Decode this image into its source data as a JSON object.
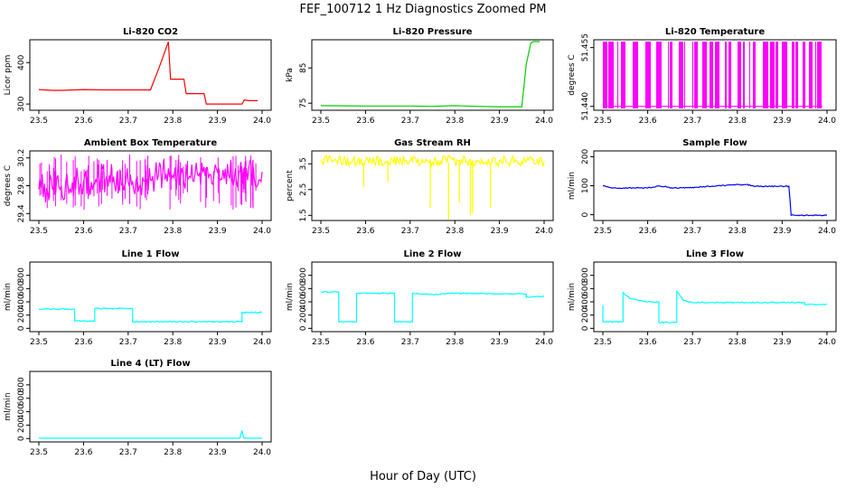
{
  "title": "FEF_100712  1 Hz Diagnostics Zoomed PM",
  "xlabel": "Hour of Day (UTC)",
  "chart_data": [
    {
      "type": "line",
      "title": "Li-820 CO2",
      "ylabel": "Licor ppm",
      "color": "#ff0000",
      "xlim": [
        23.5,
        24.0
      ],
      "ylim": [
        285,
        455
      ],
      "xticks": [
        "23.5",
        "23.6",
        "23.7",
        "23.8",
        "23.9",
        "24.0"
      ],
      "yticks": [
        "300",
        "400"
      ],
      "series": [
        {
          "x": [
            23.5,
            23.53,
            23.55,
            23.6,
            23.65,
            23.7,
            23.75,
            23.77,
            23.79,
            23.795,
            23.8,
            23.825,
            23.83,
            23.87,
            23.875,
            23.955,
            23.96,
            23.97,
            23.99
          ],
          "y": [
            335,
            333,
            333,
            335,
            334,
            334,
            334,
            390,
            450,
            360,
            360,
            360,
            325,
            325,
            300,
            300,
            310,
            308,
            308
          ]
        }
      ]
    },
    {
      "type": "line",
      "title": "Li-820 Pressure",
      "ylabel": "kPa",
      "color": "#00cc00",
      "xlim": [
        23.5,
        24.0
      ],
      "ylim": [
        73,
        93
      ],
      "xticks": [
        "23.5",
        "23.6",
        "23.7",
        "23.8",
        "23.9",
        "24.0"
      ],
      "yticks": [
        "75",
        "85"
      ],
      "series": [
        {
          "x": [
            23.5,
            23.6,
            23.7,
            23.75,
            23.8,
            23.85,
            23.9,
            23.95,
            23.955,
            23.96,
            23.965,
            23.97,
            23.975,
            23.99
          ],
          "y": [
            74.3,
            74.2,
            74.2,
            74.1,
            74.3,
            74.1,
            74.0,
            74.0,
            80,
            86,
            89,
            92,
            92.5,
            92.5
          ]
        }
      ]
    },
    {
      "type": "line",
      "title": "Li-820 Temperature",
      "ylabel": "degrees C",
      "color": "#ff00ff",
      "xlim": [
        23.5,
        24.0
      ],
      "ylim": [
        51.439,
        51.457
      ],
      "xticks": [
        "23.5",
        "23.6",
        "23.7",
        "23.8",
        "23.9",
        "24.0"
      ],
      "yticks": [
        "51.440",
        "51.455"
      ],
      "series": [
        {
          "x": [
            23.5,
            23.99
          ],
          "y": [
            51.44,
            51.44
          ]
        }
      ]
    },
    {
      "type": "line",
      "title": "Ambient Box Temperature",
      "ylabel": "degrees C",
      "color": "#ff00ff",
      "xlim": [
        23.5,
        24.0
      ],
      "ylim": [
        29.3,
        30.3
      ],
      "xticks": [
        "23.5",
        "23.6",
        "23.7",
        "23.8",
        "23.9",
        "24.0"
      ],
      "yticks": [
        "29.4",
        "29.8",
        "30.2"
      ],
      "series": [
        {
          "x": [
            23.5,
            23.55,
            23.6,
            23.65,
            23.7,
            23.75,
            23.79,
            23.8,
            23.85,
            23.9,
            23.95,
            24.0
          ],
          "y": [
            29.75,
            29.8,
            29.85,
            29.9,
            29.85,
            29.88,
            30.05,
            29.95,
            29.98,
            30.0,
            30.0,
            30.0
          ]
        }
      ]
    },
    {
      "type": "line",
      "title": "Gas Stream RH",
      "ylabel": "percent",
      "color": "#ffff00",
      "xlim": [
        23.5,
        24.0
      ],
      "ylim": [
        1.3,
        4.0
      ],
      "xticks": [
        "23.5",
        "23.6",
        "23.7",
        "23.8",
        "23.9",
        "24.0"
      ],
      "yticks": [
        "1.5",
        "2.5",
        "3.5"
      ],
      "series": [
        {
          "x": [
            23.5,
            23.55,
            23.6,
            23.65,
            23.7,
            23.75,
            23.79,
            23.8,
            23.85,
            23.9,
            23.95,
            24.0
          ],
          "y": [
            3.65,
            3.6,
            3.6,
            3.6,
            3.6,
            3.55,
            3.75,
            3.6,
            3.6,
            3.6,
            3.6,
            3.6
          ]
        }
      ]
    },
    {
      "type": "line",
      "title": "Sample Flow",
      "ylabel": "ml/min",
      "color": "#0000ff",
      "xlim": [
        23.5,
        24.0
      ],
      "ylim": [
        -20,
        220
      ],
      "xticks": [
        "23.5",
        "23.6",
        "23.7",
        "23.8",
        "23.9",
        "24.0"
      ],
      "yticks": [
        "0",
        "100",
        "200"
      ],
      "series": [
        {
          "x": [
            23.5,
            23.52,
            23.6,
            23.62,
            23.64,
            23.65,
            23.7,
            23.8,
            23.82,
            23.84,
            23.9,
            23.915,
            23.92,
            24.0
          ],
          "y": [
            100,
            92,
            92,
            98,
            98,
            92,
            94,
            104,
            104,
            98,
            98,
            98,
            -2,
            -2
          ]
        }
      ]
    },
    {
      "type": "line",
      "title": "Line 1 Flow",
      "ylabel": "ml/min",
      "color": "#00ffff",
      "xlim": [
        23.5,
        24.0
      ],
      "ylim": [
        -50,
        1000
      ],
      "xticks": [
        "23.5",
        "23.6",
        "23.7",
        "23.8",
        "23.9",
        "24.0"
      ],
      "yticks": [
        "0",
        "200",
        "400",
        "600",
        "800"
      ],
      "series": [
        {
          "x": [
            23.5,
            23.58,
            23.58,
            23.625,
            23.625,
            23.71,
            23.71,
            23.955,
            23.955,
            24.0
          ],
          "y": [
            290,
            290,
            110,
            110,
            300,
            300,
            100,
            100,
            240,
            240
          ]
        }
      ]
    },
    {
      "type": "line",
      "title": "Line 2 Flow",
      "ylabel": "ml/min",
      "color": "#00ffff",
      "xlim": [
        23.5,
        24.0
      ],
      "ylim": [
        -50,
        1000
      ],
      "xticks": [
        "23.5",
        "23.6",
        "23.7",
        "23.8",
        "23.9",
        "24.0"
      ],
      "yticks": [
        "0",
        "200",
        "400",
        "600",
        "800"
      ],
      "series": [
        {
          "x": [
            23.5,
            23.54,
            23.54,
            23.58,
            23.58,
            23.665,
            23.665,
            23.705,
            23.705,
            23.75,
            23.8,
            23.9,
            23.96,
            23.96,
            24.0
          ],
          "y": [
            550,
            550,
            100,
            100,
            530,
            530,
            100,
            100,
            530,
            510,
            530,
            520,
            520,
            470,
            480
          ]
        }
      ]
    },
    {
      "type": "line",
      "title": "Line 3 Flow",
      "ylabel": "ml/min",
      "color": "#00ffff",
      "xlim": [
        23.5,
        24.0
      ],
      "ylim": [
        -50,
        1000
      ],
      "xticks": [
        "23.5",
        "23.6",
        "23.7",
        "23.8",
        "23.9",
        "24.0"
      ],
      "yticks": [
        "0",
        "200",
        "400",
        "600",
        "800"
      ],
      "series": [
        {
          "x": [
            23.5,
            23.5,
            23.545,
            23.545,
            23.56,
            23.6,
            23.625,
            23.625,
            23.665,
            23.665,
            23.68,
            23.7,
            23.8,
            23.95,
            23.95,
            24.0
          ],
          "y": [
            350,
            100,
            100,
            540,
            450,
            400,
            400,
            90,
            90,
            560,
            420,
            390,
            390,
            390,
            360,
            360
          ]
        }
      ]
    },
    {
      "type": "line",
      "title": "Line 4 (LT) Flow",
      "ylabel": "ml/min",
      "color": "#00ffff",
      "xlim": [
        23.5,
        24.0
      ],
      "ylim": [
        -50,
        1000
      ],
      "xticks": [
        "23.5",
        "23.6",
        "23.7",
        "23.8",
        "23.9",
        "24.0"
      ],
      "yticks": [
        "0",
        "200",
        "400",
        "600",
        "800"
      ],
      "series": [
        {
          "x": [
            23.5,
            23.95,
            23.955,
            23.958,
            23.96,
            24.0
          ],
          "y": [
            5,
            5,
            120,
            20,
            5,
            5
          ]
        }
      ]
    }
  ]
}
